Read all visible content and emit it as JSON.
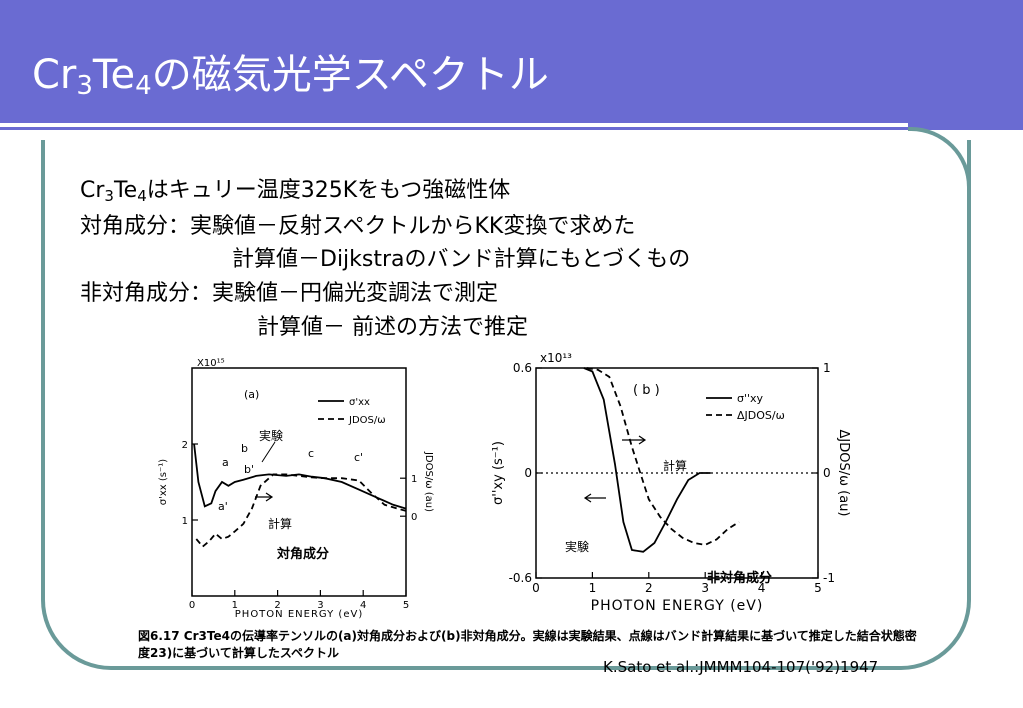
{
  "slide": {
    "title_main": "Cr",
    "title_sub1": "3",
    "title_mid": "Te",
    "title_sub2": "4",
    "title_rest": "の磁気光学スペクトル"
  },
  "body": {
    "line1_a": "Cr",
    "line1_sub1": "3",
    "line1_b": "Te",
    "line1_sub2": "4",
    "line1_c": "はキュリー温度325Kをもつ強磁性体",
    "line2": "対角成分：実験値－反射スペクトルからKK変換で求めた",
    "line3": "計算値－Dijkstraのバンド計算にもとづくもの",
    "line4": "非対角成分：実験値－円偏光変調法で測定",
    "line5": "計算値－ 前述の方法で推定"
  },
  "caption": "図6.17 Cr3Te4の伝導率テンソルの(a)対角成分および(b)非対角成分。実線は実験結果、点線はバンド計算結果に基づいて推定した結合状態密度23)に基づいて計算したスペクトル",
  "citation": "K.Sato et al.:JMMM104-107('92)1947",
  "chart_data": [
    {
      "type": "line",
      "panel_label": "(a)",
      "xlabel": "PHOTON ENERGY (eV)",
      "ylabel": "σ'xx (s⁻¹)",
      "y2label": "JDOS/ω (au)",
      "scale_note": "X10¹⁵",
      "xlim": [
        0,
        5
      ],
      "ylim": [
        0,
        3
      ],
      "x_ticks": [
        "0",
        "1",
        "2",
        "3",
        "4",
        "5"
      ],
      "y_ticks": [
        "1",
        "2"
      ],
      "y2_ticks": [
        "1",
        "0"
      ],
      "legend": [
        "σ'xx",
        "JDOS/ω"
      ],
      "series": [
        {
          "name": "σ'xx",
          "style": "solid",
          "x": [
            0.05,
            0.15,
            0.3,
            0.45,
            0.55,
            0.7,
            0.85,
            1.0,
            1.2,
            1.5,
            1.8,
            2.2,
            2.5,
            2.8,
            3.1,
            3.5,
            3.9,
            4.3,
            4.7,
            5.0
          ],
          "y": [
            2.0,
            1.5,
            1.18,
            1.22,
            1.38,
            1.5,
            1.45,
            1.5,
            1.53,
            1.58,
            1.6,
            1.58,
            1.6,
            1.57,
            1.55,
            1.5,
            1.4,
            1.3,
            1.2,
            1.15
          ]
        },
        {
          "name": "JDOS/ω",
          "style": "dashed",
          "x": [
            0.1,
            0.25,
            0.4,
            0.55,
            0.7,
            0.85,
            1.0,
            1.2,
            1.4,
            1.6,
            1.9,
            2.2,
            2.5,
            2.8,
            3.1,
            3.5,
            3.9,
            4.2,
            4.5,
            4.8,
            5.0
          ],
          "y": [
            0.75,
            0.65,
            0.72,
            0.82,
            0.75,
            0.78,
            0.85,
            0.95,
            1.15,
            1.45,
            1.6,
            1.6,
            1.58,
            1.56,
            1.55,
            1.55,
            1.52,
            1.35,
            1.2,
            1.15,
            1.12
          ]
        }
      ],
      "letter_annotations": [
        "a",
        "b",
        "c",
        "c'",
        "b'",
        "a'"
      ],
      "annotations": [
        "実験",
        "計算",
        "対角成分"
      ]
    },
    {
      "type": "line",
      "panel_label": "( b )",
      "xlabel": "PHOTON ENERGY (eV)",
      "ylabel": "σ''xy (s⁻¹)",
      "y2label": "ΔJDOS/ω (au)",
      "scale_note": "x10¹³",
      "xlim": [
        0,
        5
      ],
      "ylim": [
        -0.6,
        0.6
      ],
      "x_ticks": [
        "0",
        "1",
        "2",
        "3",
        "4",
        "5"
      ],
      "y_ticks": [
        "0.6",
        "0",
        "-0.6"
      ],
      "y2_ticks": [
        "1",
        "0",
        "-1"
      ],
      "legend": [
        "σ''xy",
        "ΔJDOS/ω"
      ],
      "series": [
        {
          "name": "σ''xy",
          "style": "solid",
          "x": [
            0.85,
            1.0,
            1.2,
            1.4,
            1.55,
            1.7,
            1.9,
            2.1,
            2.3,
            2.5,
            2.7,
            2.9,
            3.1
          ],
          "y": [
            0.6,
            0.58,
            0.42,
            0.05,
            -0.28,
            -0.44,
            -0.45,
            -0.4,
            -0.28,
            -0.15,
            -0.04,
            0.0,
            0.0
          ]
        },
        {
          "name": "ΔJDOS/ω",
          "style": "dashed",
          "x": [
            0.9,
            1.1,
            1.3,
            1.5,
            1.7,
            1.85,
            2.0,
            2.2,
            2.4,
            2.6,
            2.8,
            3.0,
            3.2,
            3.4,
            3.6
          ],
          "y": [
            0.6,
            0.59,
            0.55,
            0.38,
            0.15,
            0.0,
            -0.15,
            -0.25,
            -0.32,
            -0.37,
            -0.4,
            -0.41,
            -0.38,
            -0.32,
            -0.28
          ]
        }
      ],
      "annotations": [
        "計算",
        "実験",
        "非対角成分"
      ]
    }
  ]
}
